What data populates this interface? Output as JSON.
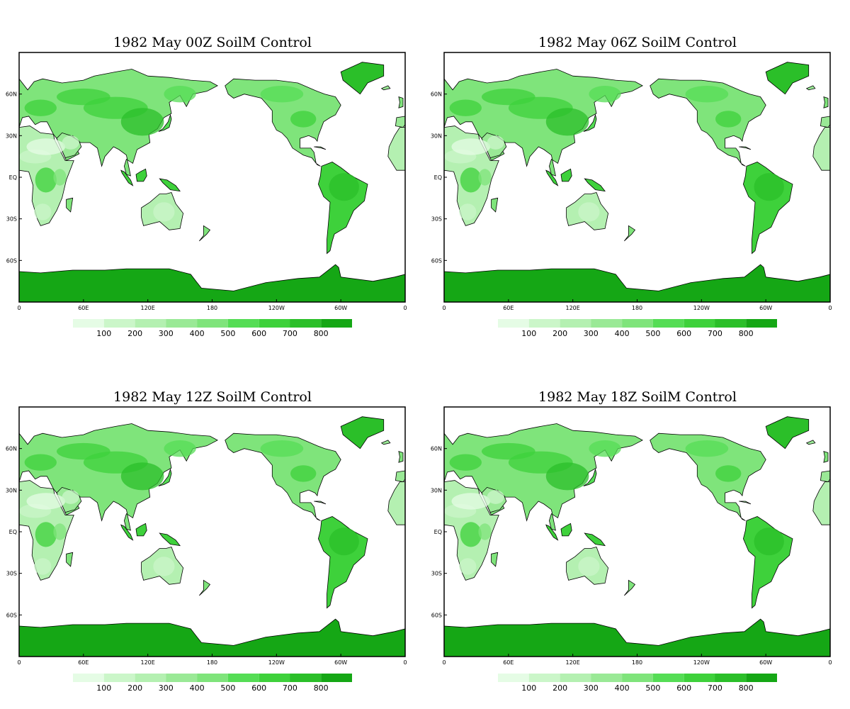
{
  "panels": [
    {
      "title": "1982 May  00Z SoilM Control"
    },
    {
      "title": "1982  May 06Z SoilM Control"
    },
    {
      "title": "1982  May 12Z SoilM Control"
    },
    {
      "title": "1982  May 18Z SoilM Control"
    }
  ],
  "map": {
    "lat_labels": [
      "60N",
      "30N",
      "EQ",
      "30S",
      "60S"
    ],
    "lon_labels": [
      "0",
      "60E",
      "120E",
      "180",
      "120W",
      "60W",
      "0"
    ],
    "land_outline_color": "#000000",
    "ocean_color": "#ffffff"
  },
  "colorbar": {
    "labels": [
      "100",
      "200",
      "300",
      "400",
      "500",
      "600",
      "700",
      "800"
    ],
    "colors": [
      "#e5fce5",
      "#cbf6c9",
      "#b4f0b1",
      "#9ae996",
      "#7fe47b",
      "#55dd55",
      "#3ed13b",
      "#2bbf29",
      "#15a715"
    ]
  }
}
